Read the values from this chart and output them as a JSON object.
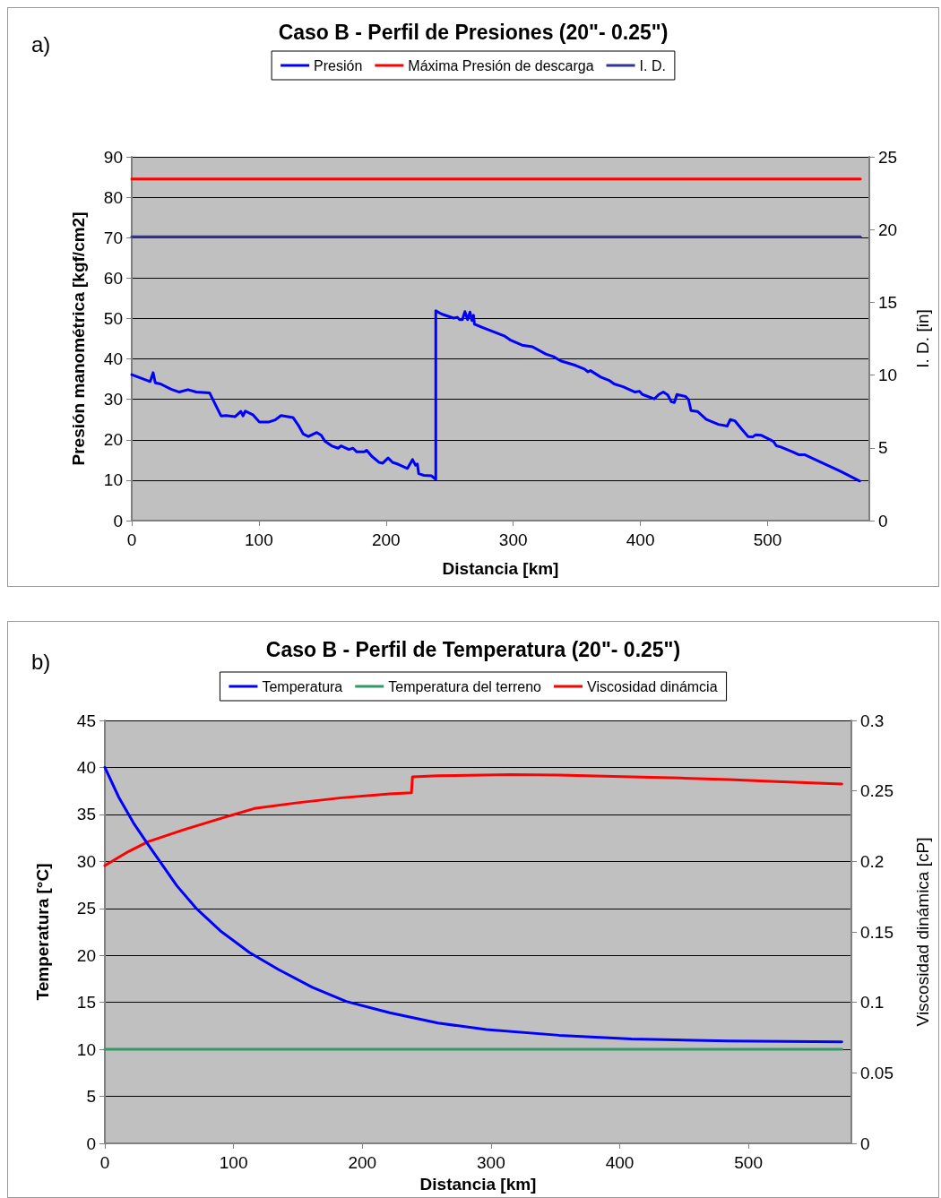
{
  "chart_data": [
    {
      "type": "line",
      "title": "Caso B - Perfil de Presiones (20\"- 0.25\")",
      "xlabel": "Distancia [km]",
      "ylabel": "Presión manométrica [kgf/cm2]",
      "y2label": "I. D. [in]",
      "annotations": [
        "a)"
      ],
      "xlim": [
        0,
        580
      ],
      "xticks": [
        0,
        100,
        200,
        300,
        400,
        500
      ],
      "ylim": [
        0,
        90
      ],
      "yticks": [
        0,
        10,
        20,
        30,
        40,
        50,
        60,
        70,
        80,
        90
      ],
      "y2lim": [
        0,
        25
      ],
      "y2ticks": [
        0,
        5,
        10,
        15,
        20,
        25
      ],
      "grid": "y",
      "legend": "top",
      "marker": "none",
      "line_style": "solid",
      "series": [
        {
          "name": "Presión",
          "color": "#0000ff",
          "x": [
            0,
            14.5,
            16.8,
            18.5,
            22.7,
            30.9,
            37.4,
            44.2,
            50.7,
            61.2,
            70.2,
            74.2,
            81.2,
            85.8,
            87.5,
            89.3,
            95.2,
            100.4,
            108,
            112.8,
            117.4,
            126.8,
            131,
            134.9,
            138.9,
            145.5,
            149,
            152,
            157.2,
            162.3,
            164.6,
            170.7,
            174,
            177,
            182.9,
            184.7,
            188.8,
            194.6,
            197.4,
            201.6,
            205.1,
            209.8,
            216.8,
            220.8,
            223.2,
            224.6,
            225.7,
            229.7,
            235.6,
            239.1,
            239.1,
            243.7,
            253.1,
            256,
            257.8,
            260,
            262,
            264.1,
            266,
            267.5,
            268.8,
            269.5,
            276.5,
            292.9,
            297.5,
            306.9,
            315.1,
            325.6,
            331.4,
            337.3,
            349,
            356,
            358.8,
            360.7,
            368.9,
            375.9,
            379.4,
            386.4,
            395.8,
            399.3,
            401.6,
            410.9,
            414.5,
            418,
            421.5,
            424.3,
            426.7,
            428.7,
            435.5,
            437.9,
            439.8,
            444.9,
            451.9,
            461.3,
            468.3,
            470.7,
            474.2,
            480,
            484.7,
            488.2,
            490.5,
            495.2,
            504.6,
            506.9,
            510.4,
            519.8,
            524.4,
            529.1,
            540.8,
            557.2,
            572.4
          ],
          "values": [
            36.1,
            34.4,
            36.6,
            34.1,
            33.8,
            32.5,
            31.8,
            32.4,
            31.8,
            31.6,
            25.9,
            26,
            25.7,
            27,
            25.9,
            27.1,
            26.2,
            24.4,
            24.4,
            24.9,
            26,
            25.5,
            23.6,
            21.4,
            20.8,
            21.8,
            21.1,
            19.6,
            18.5,
            17.9,
            18.5,
            17.6,
            17.9,
            17,
            17,
            17.4,
            15.9,
            14.4,
            14.2,
            15.5,
            14.4,
            13.9,
            12.9,
            15.1,
            13.7,
            14,
            11.6,
            11.2,
            11.1,
            10.2,
            51.9,
            51.1,
            50.1,
            50.3,
            49.7,
            49.7,
            51.7,
            49.7,
            51.6,
            49.5,
            50.8,
            48.6,
            47.7,
            45.7,
            44.7,
            43.4,
            43,
            41.2,
            40.6,
            39.5,
            38.4,
            37.5,
            36.8,
            37.1,
            35.5,
            34.6,
            33.8,
            33.1,
            31.8,
            32,
            31.2,
            30.1,
            31.2,
            31.8,
            31.1,
            29.4,
            29.2,
            31.2,
            30.7,
            29.9,
            27.2,
            27,
            25,
            23.8,
            23.4,
            25,
            24.7,
            22.5,
            20.8,
            20.7,
            21.2,
            21.1,
            19.6,
            18.5,
            18.2,
            17,
            16.3,
            16.3,
            14.6,
            12.2,
            9.8
          ]
        },
        {
          "name": "Máxima Presión de descarga",
          "color": "#ff0000",
          "x": [
            0,
            573
          ],
          "values": [
            84.5,
            84.5
          ]
        },
        {
          "name": "I. D.",
          "color": "#333399",
          "axis": "y2",
          "x": [
            0,
            573
          ],
          "values": [
            19.5,
            19.5
          ]
        }
      ]
    },
    {
      "type": "line",
      "title": "Caso B - Perfil de Temperatura (20\"- 0.25\")",
      "xlabel": "Distancia [km]",
      "ylabel": "Temperatura [°C]",
      "y2label": "Viscosidad dinámica [cP]",
      "annotations": [
        "b)"
      ],
      "xlim": [
        0,
        580
      ],
      "xticks": [
        0,
        100,
        200,
        300,
        400,
        500
      ],
      "ylim": [
        0,
        45
      ],
      "yticks": [
        0,
        5,
        10,
        15,
        20,
        25,
        30,
        35,
        40,
        45
      ],
      "y2lim": [
        0,
        0.3
      ],
      "y2ticks": [
        0,
        0.05,
        0.1,
        0.15,
        0.2,
        0.25,
        0.3
      ],
      "grid": "y",
      "legend": "top",
      "marker": "none",
      "line_style": "solid",
      "series": [
        {
          "name": "Temperatura",
          "color": "#0000ff",
          "x": [
            0,
            10.9,
            22.2,
            33.5,
            56,
            71,
            89.8,
            112.3,
            134.9,
            161.2,
            187.5,
            221.3,
            258.9,
            296.4,
            352.8,
            409.2,
            484.3,
            572.6
          ],
          "values": [
            40,
            36.8,
            34.1,
            31.8,
            27.4,
            25,
            22.6,
            20.3,
            18.5,
            16.6,
            15.1,
            13.9,
            12.8,
            12.1,
            11.5,
            11.1,
            10.9,
            10.8
          ]
        },
        {
          "name": "Temperatura del terreno",
          "color": "#339966",
          "x": [
            0,
            572.6
          ],
          "values": [
            10,
            10
          ]
        },
        {
          "name": "Viscosidad dinámcia",
          "color": "#ff0000",
          "axis": "y2",
          "x": [
            0,
            18.4,
            33.5,
            61.6,
            86.1,
            116.1,
            149.9,
            183.8,
            221.3,
            238.2,
            239,
            258.9,
            315.3,
            352.8,
            409.2,
            446.8,
            484.3,
            521.9,
            572.6
          ],
          "values": [
            0.197,
            0.207,
            0.214,
            0.2225,
            0.2294,
            0.2375,
            0.2416,
            0.2451,
            0.2479,
            0.2486,
            0.26,
            0.2608,
            0.2615,
            0.2612,
            0.26,
            0.2591,
            0.258,
            0.2566,
            0.2549
          ]
        }
      ]
    }
  ]
}
